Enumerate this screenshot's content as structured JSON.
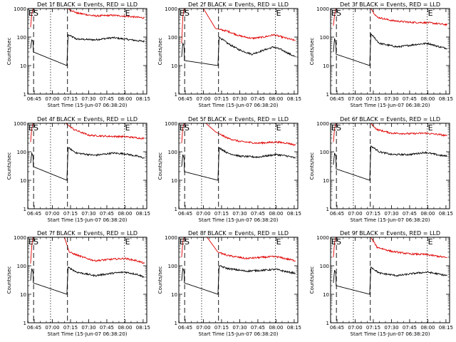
{
  "chart_data": {
    "type": "line",
    "x_tick_labels": [
      "06:45",
      "07:00",
      "07:15",
      "07:30",
      "07:45",
      "08:00",
      "08:15"
    ],
    "x_ticks_minutes_after_0630": [
      15,
      30,
      45,
      60,
      75,
      90,
      105
    ],
    "xlim_minutes_after_0630": [
      9.7,
      108
    ],
    "xlabel": "Start Time (15-Jun-07 06:38:20)",
    "ylabel": "Counts/sec",
    "ylim": [
      1,
      1000
    ],
    "yscale": "log",
    "y_tick_labels": [
      "1",
      "10",
      "100",
      "1000"
    ],
    "legend_colors": {
      "events": "#000000",
      "lld": "#e00000"
    },
    "marker_labels": [
      "E",
      "S",
      "E"
    ],
    "panels": [
      {
        "title": "Det 1f BLACK = Events, RED = LLD",
        "dashed_lines": [
          14.5,
          42.5
        ],
        "dotted_lines": [
          28.5,
          89.5
        ],
        "series": [
          {
            "color": "#000000",
            "values": [
              [
                12,
                40
              ],
              [
                13,
                80
              ],
              [
                14,
                70
              ],
              [
                14.3,
                30
              ],
              [
                42,
                10
              ],
              [
                43,
                120
              ],
              [
                50,
                85
              ],
              [
                65,
                80
              ],
              [
                80,
                95
              ],
              [
                90,
                85
              ],
              [
                100,
                75
              ],
              [
                106,
                70
              ]
            ]
          },
          {
            "color": "#e00000",
            "values": [
              [
                12,
                220
              ],
              [
                13,
                650
              ],
              [
                14,
                1000
              ],
              [
                43,
                1000
              ],
              [
                50,
                700
              ],
              [
                65,
                550
              ],
              [
                80,
                580
              ],
              [
                95,
                520
              ],
              [
                106,
                470
              ]
            ]
          }
        ]
      },
      {
        "title": "Det 2f BLACK = Events, RED = LLD",
        "dashed_lines": [
          14.5,
          42.5
        ],
        "dotted_lines": [
          28.5,
          89.5
        ],
        "series": [
          {
            "color": "#000000",
            "values": [
              [
                12,
                20
              ],
              [
                13,
                60
              ],
              [
                14,
                50
              ],
              [
                14.3,
                15
              ],
              [
                42,
                10
              ],
              [
                43,
                100
              ],
              [
                50,
                60
              ],
              [
                60,
                35
              ],
              [
                70,
                25
              ],
              [
                80,
                35
              ],
              [
                88,
                45
              ],
              [
                95,
                35
              ],
              [
                106,
                20
              ]
            ]
          },
          {
            "color": "#e00000",
            "values": [
              [
                12,
                60
              ],
              [
                13,
                500
              ],
              [
                14,
                1000
              ],
              [
                30,
                1000
              ],
              [
                40,
                200
              ],
              [
                50,
                160
              ],
              [
                60,
                110
              ],
              [
                70,
                90
              ],
              [
                80,
                100
              ],
              [
                88,
                120
              ],
              [
                95,
                100
              ],
              [
                106,
                75
              ]
            ]
          }
        ]
      },
      {
        "title": "Det 3f BLACK = Events, RED = LLD",
        "dashed_lines": [
          14.5,
          42.5
        ],
        "dotted_lines": [
          28.5,
          89.5
        ],
        "series": [
          {
            "color": "#000000",
            "values": [
              [
                12,
                30
              ],
              [
                13,
                90
              ],
              [
                14,
                60
              ],
              [
                14.3,
                25
              ],
              [
                42,
                10
              ],
              [
                43,
                130
              ],
              [
                50,
                60
              ],
              [
                65,
                45
              ],
              [
                80,
                55
              ],
              [
                90,
                60
              ],
              [
                100,
                45
              ],
              [
                106,
                40
              ]
            ]
          },
          {
            "color": "#e00000",
            "values": [
              [
                12,
                250
              ],
              [
                13,
                600
              ],
              [
                14,
                1000
              ],
              [
                43,
                1000
              ],
              [
                48,
                500
              ],
              [
                60,
                380
              ],
              [
                75,
                330
              ],
              [
                90,
                320
              ],
              [
                106,
                270
              ]
            ]
          }
        ]
      },
      {
        "title": "Det 4f BLACK = Events, RED = LLD",
        "dashed_lines": [
          14.5,
          42.5
        ],
        "dotted_lines": [
          28.5,
          89.5
        ],
        "series": [
          {
            "color": "#000000",
            "values": [
              [
                12,
                40
              ],
              [
                13,
                90
              ],
              [
                14,
                70
              ],
              [
                14.3,
                30
              ],
              [
                42,
                10
              ],
              [
                43,
                140
              ],
              [
                50,
                90
              ],
              [
                65,
                75
              ],
              [
                80,
                90
              ],
              [
                90,
                85
              ],
              [
                100,
                70
              ],
              [
                106,
                60
              ]
            ]
          },
          {
            "color": "#e00000",
            "values": [
              [
                12,
                220
              ],
              [
                13,
                650
              ],
              [
                14,
                1000
              ],
              [
                41,
                1000
              ],
              [
                48,
                600
              ],
              [
                60,
                380
              ],
              [
                75,
                350
              ],
              [
                90,
                340
              ],
              [
                106,
                290
              ]
            ]
          }
        ]
      },
      {
        "title": "Det 5f BLACK = Events, RED = LLD",
        "dashed_lines": [
          14.5,
          42.5
        ],
        "dotted_lines": [
          28.5,
          89.5
        ],
        "series": [
          {
            "color": "#000000",
            "values": [
              [
                12,
                30
              ],
              [
                13,
                80
              ],
              [
                14,
                60
              ],
              [
                14.3,
                20
              ],
              [
                42,
                10
              ],
              [
                43,
                140
              ],
              [
                50,
                90
              ],
              [
                60,
                70
              ],
              [
                75,
                65
              ],
              [
                90,
                80
              ],
              [
                100,
                70
              ],
              [
                106,
                60
              ]
            ]
          },
          {
            "color": "#e00000",
            "values": [
              [
                12,
                200
              ],
              [
                13,
                700
              ],
              [
                14,
                1000
              ],
              [
                32,
                1000
              ],
              [
                40,
                500
              ],
              [
                50,
                300
              ],
              [
                60,
                230
              ],
              [
                75,
                200
              ],
              [
                90,
                220
              ],
              [
                100,
                200
              ],
              [
                106,
                170
              ]
            ]
          }
        ]
      },
      {
        "title": "Det 6f BLACK = Events, RED = LLD",
        "dashed_lines": [
          14.5,
          42.5
        ],
        "dotted_lines": [
          28.5,
          89.5
        ],
        "series": [
          {
            "color": "#000000",
            "values": [
              [
                12,
                35
              ],
              [
                13,
                90
              ],
              [
                14,
                70
              ],
              [
                14.3,
                25
              ],
              [
                42,
                10
              ],
              [
                43,
                160
              ],
              [
                50,
                100
              ],
              [
                60,
                80
              ],
              [
                75,
                80
              ],
              [
                88,
                95
              ],
              [
                100,
                75
              ],
              [
                106,
                70
              ]
            ]
          },
          {
            "color": "#e00000",
            "values": [
              [
                12,
                220
              ],
              [
                13,
                650
              ],
              [
                14,
                1000
              ],
              [
                43,
                1000
              ],
              [
                48,
                600
              ],
              [
                60,
                450
              ],
              [
                75,
                430
              ],
              [
                88,
                450
              ],
              [
                100,
                400
              ],
              [
                106,
                360
              ]
            ]
          }
        ]
      },
      {
        "title": "Det 7f BLACK = Events, RED = LLD",
        "dashed_lines": [
          14.5,
          42.5
        ],
        "dotted_lines": [
          28.5,
          89.5
        ],
        "series": [
          {
            "color": "#000000",
            "values": [
              [
                12,
                30
              ],
              [
                13,
                80
              ],
              [
                14,
                60
              ],
              [
                14.3,
                25
              ],
              [
                42,
                10
              ],
              [
                43,
                90
              ],
              [
                50,
                60
              ],
              [
                65,
                45
              ],
              [
                80,
                55
              ],
              [
                90,
                60
              ],
              [
                100,
                50
              ],
              [
                106,
                40
              ]
            ]
          },
          {
            "color": "#e00000",
            "values": [
              [
                12,
                120
              ],
              [
                13,
                500
              ],
              [
                14,
                1000
              ],
              [
                40,
                1000
              ],
              [
                44,
                300
              ],
              [
                55,
                200
              ],
              [
                65,
                150
              ],
              [
                80,
                170
              ],
              [
                90,
                180
              ],
              [
                100,
                150
              ],
              [
                106,
                120
              ]
            ]
          }
        ]
      },
      {
        "title": "Det 8f BLACK = Events, RED = LLD",
        "dashed_lines": [
          14.5,
          42.5
        ],
        "dotted_lines": [
          28.5,
          89.5
        ],
        "series": [
          {
            "color": "#000000",
            "values": [
              [
                12,
                30
              ],
              [
                13,
                80
              ],
              [
                14,
                65
              ],
              [
                14.3,
                25
              ],
              [
                42,
                10
              ],
              [
                43,
                100
              ],
              [
                50,
                80
              ],
              [
                65,
                65
              ],
              [
                80,
                70
              ],
              [
                90,
                75
              ],
              [
                100,
                60
              ],
              [
                106,
                55
              ]
            ]
          },
          {
            "color": "#e00000",
            "values": [
              [
                12,
                200
              ],
              [
                13,
                700
              ],
              [
                14,
                1000
              ],
              [
                33,
                1000
              ],
              [
                42,
                300
              ],
              [
                50,
                230
              ],
              [
                65,
                180
              ],
              [
                80,
                200
              ],
              [
                90,
                210
              ],
              [
                100,
                170
              ],
              [
                106,
                150
              ]
            ]
          }
        ]
      },
      {
        "title": "Det 9f BLACK = Events, RED = LLD",
        "dashed_lines": [
          14.5,
          42.5
        ],
        "dotted_lines": [
          28.5,
          89.5
        ],
        "series": [
          {
            "color": "#000000",
            "values": [
              [
                12,
                25
              ],
              [
                13,
                70
              ],
              [
                14,
                55
              ],
              [
                14.3,
                20
              ],
              [
                42,
                10
              ],
              [
                43,
                90
              ],
              [
                50,
                55
              ],
              [
                65,
                45
              ],
              [
                80,
                55
              ],
              [
                90,
                60
              ],
              [
                100,
                50
              ],
              [
                106,
                45
              ]
            ]
          },
          {
            "color": "#e00000",
            "values": [
              [
                12,
                200
              ],
              [
                13,
                650
              ],
              [
                14,
                1000
              ],
              [
                43,
                1000
              ],
              [
                48,
                450
              ],
              [
                60,
                320
              ],
              [
                75,
                260
              ],
              [
                88,
                250
              ],
              [
                100,
                210
              ],
              [
                106,
                190
              ]
            ]
          }
        ]
      }
    ]
  }
}
